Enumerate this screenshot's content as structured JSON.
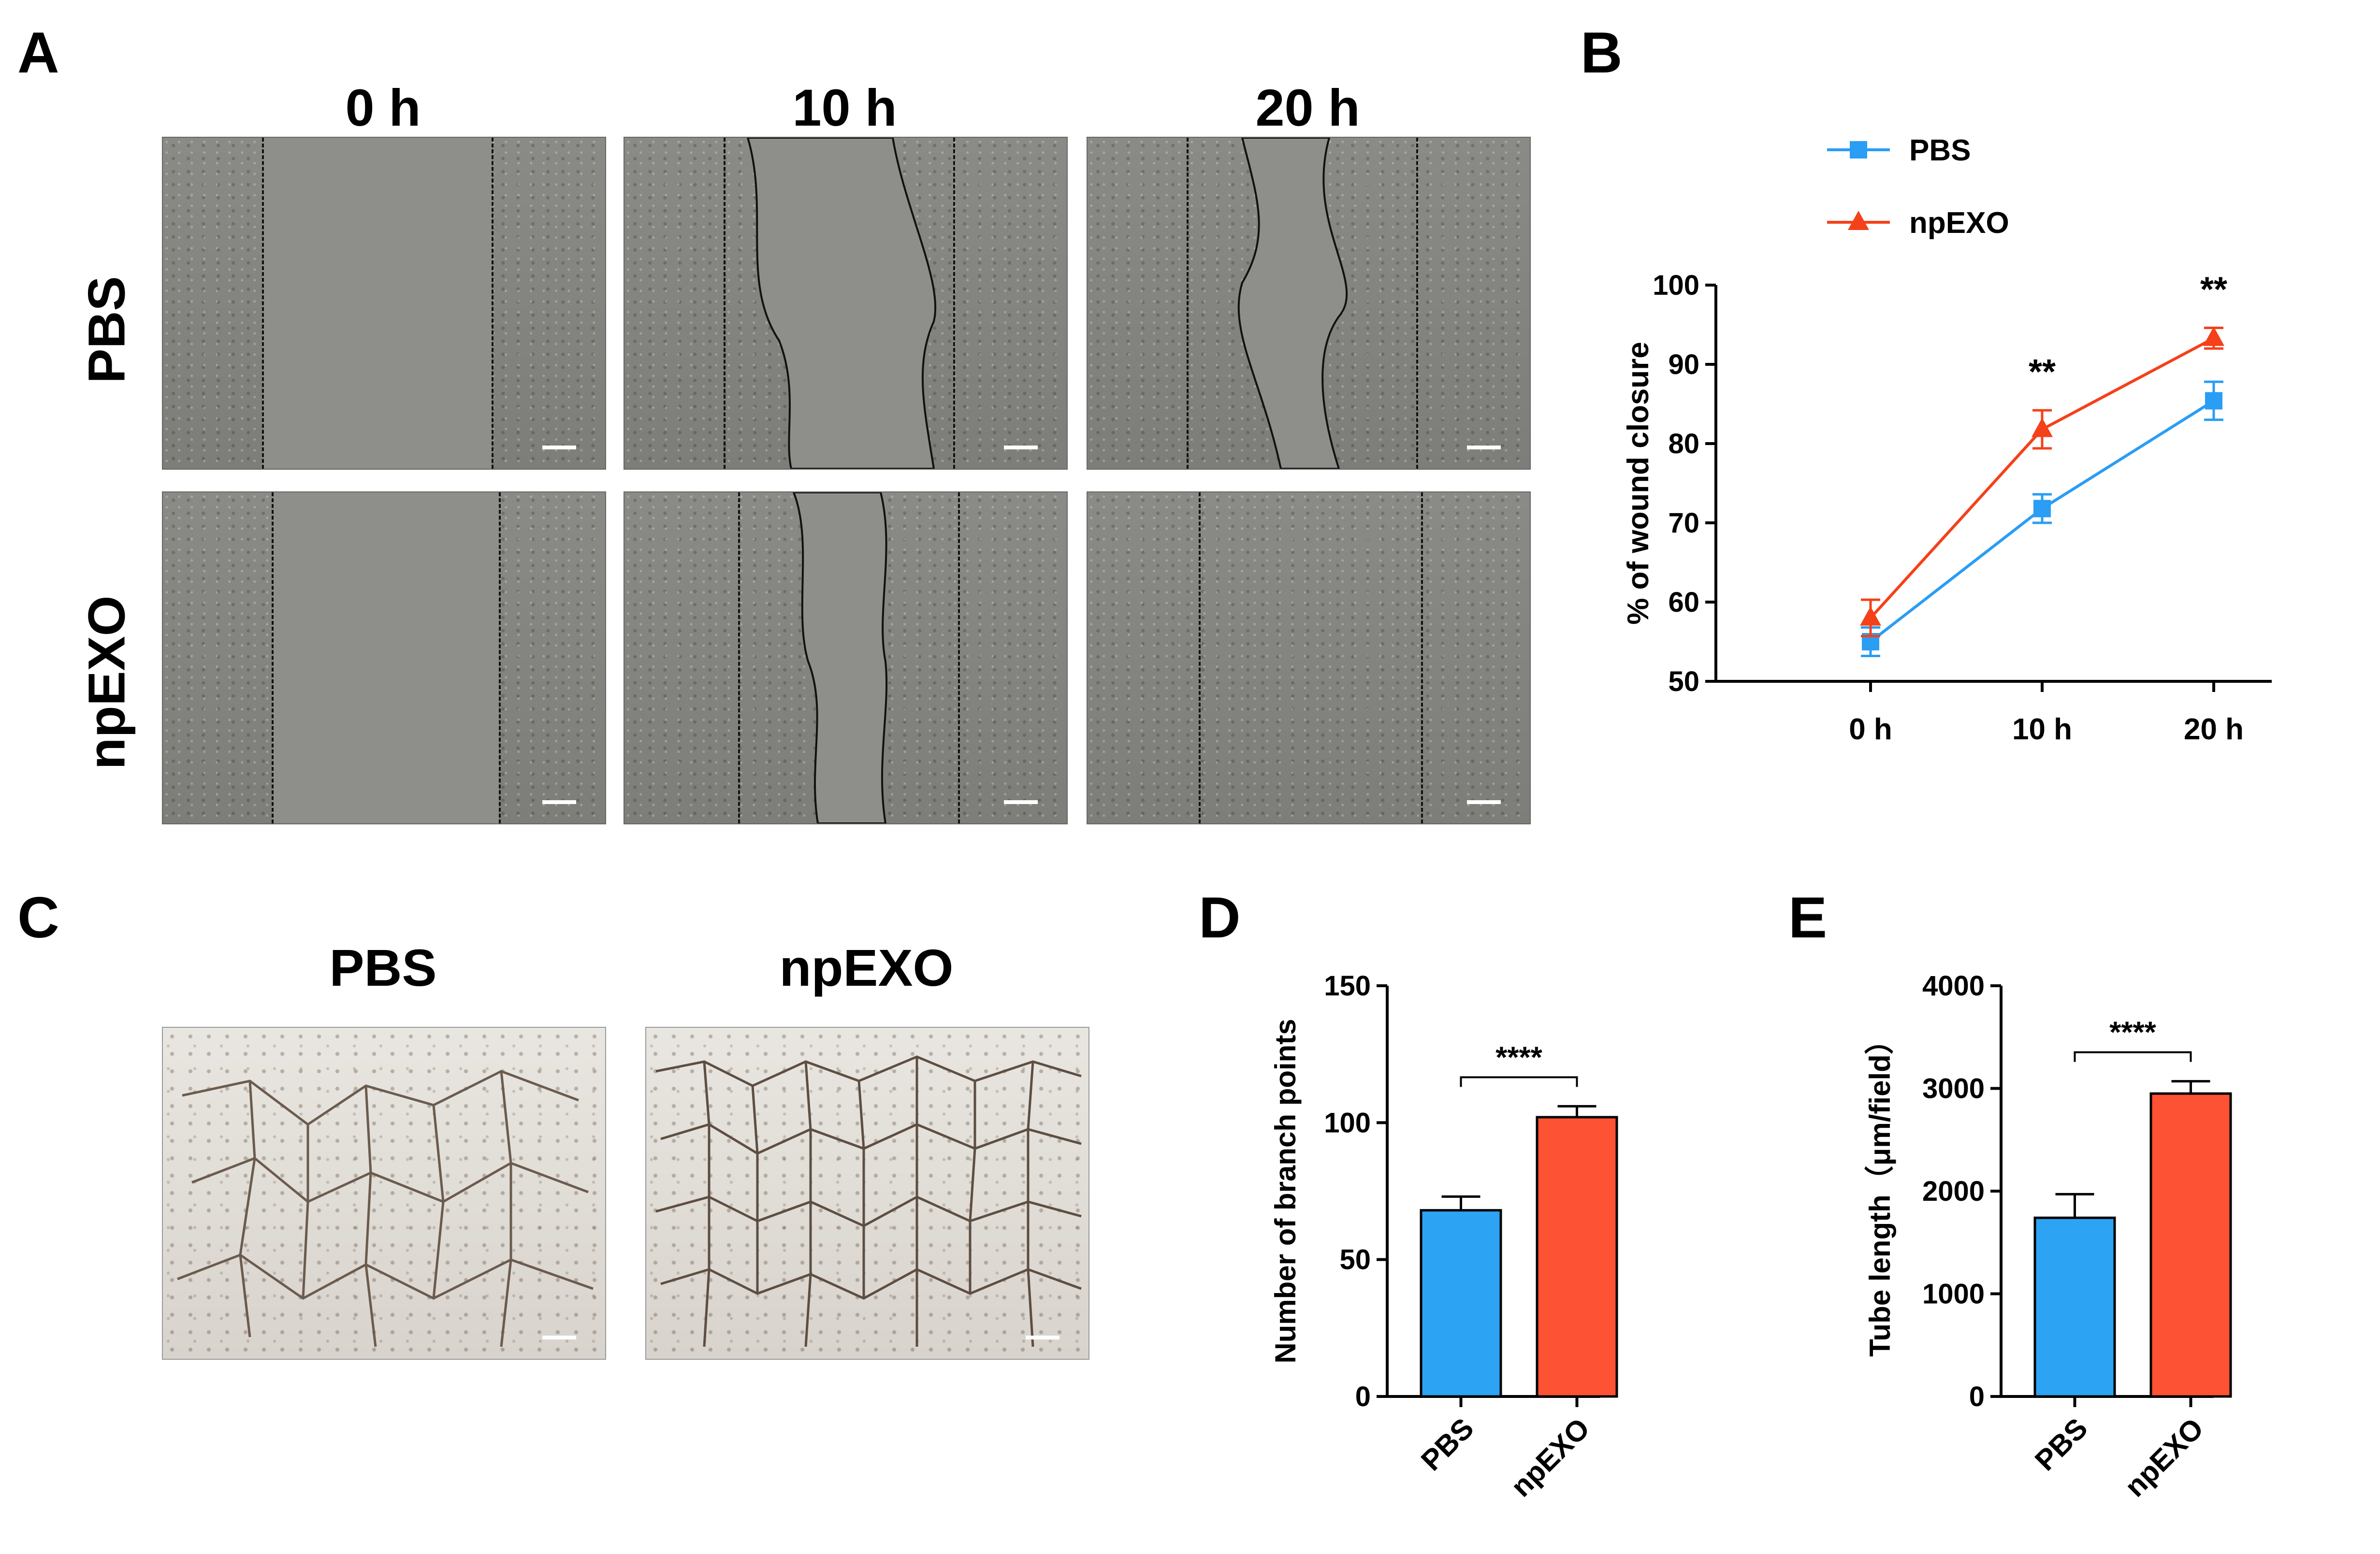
{
  "panels": {
    "A": {
      "letter": "A",
      "columns": [
        "0 h",
        "10 h",
        "20 h"
      ],
      "rows": [
        "PBS",
        "npEXO"
      ]
    },
    "B": {
      "letter": "B"
    },
    "C": {
      "letter": "C",
      "columns": [
        "PBS",
        "npEXO"
      ]
    },
    "D": {
      "letter": "D"
    },
    "E": {
      "letter": "E"
    }
  },
  "colors": {
    "pbs": "#2a9df4",
    "npexo": "#f4411a",
    "pbs_bar": "#2ca3f3",
    "npexo_bar": "#fe5234"
  },
  "chart_data": [
    {
      "id": "B",
      "type": "line",
      "categories": [
        "0 h",
        "10 h",
        "20 h"
      ],
      "ylabel": "% of wound closure",
      "xlabel": "",
      "ylim": [
        50,
        100
      ],
      "yticks": [
        50,
        60,
        70,
        80,
        90,
        100
      ],
      "legend_position": "top-left",
      "series": [
        {
          "name": "PBS",
          "marker": "square",
          "values": [
            55,
            71.8,
            85.4
          ],
          "errors": [
            1.8,
            1.8,
            2.4
          ]
        },
        {
          "name": "npEXO",
          "marker": "triangle",
          "values": [
            58,
            81.8,
            93.3
          ],
          "errors": [
            2.3,
            2.4,
            1.3
          ]
        }
      ],
      "annotations": [
        {
          "category": "10 h",
          "text": "**"
        },
        {
          "category": "20 h",
          "text": "**"
        }
      ]
    },
    {
      "id": "D",
      "type": "bar",
      "categories": [
        "PBS",
        "npEXO"
      ],
      "values": [
        68,
        102
      ],
      "errors": [
        5,
        4
      ],
      "ylabel": "Number of branch points",
      "xlabel": "",
      "ylim": [
        0,
        150
      ],
      "yticks": [
        0,
        50,
        100,
        150
      ],
      "significance": "****"
    },
    {
      "id": "E",
      "type": "bar",
      "categories": [
        "PBS",
        "npEXO"
      ],
      "values": [
        1740,
        2950
      ],
      "errors": [
        230,
        120
      ],
      "ylabel": "Tube length（μm/field）",
      "xlabel": "",
      "ylim": [
        0,
        4000
      ],
      "yticks": [
        0,
        1000,
        2000,
        3000,
        4000
      ],
      "significance": "****"
    }
  ]
}
